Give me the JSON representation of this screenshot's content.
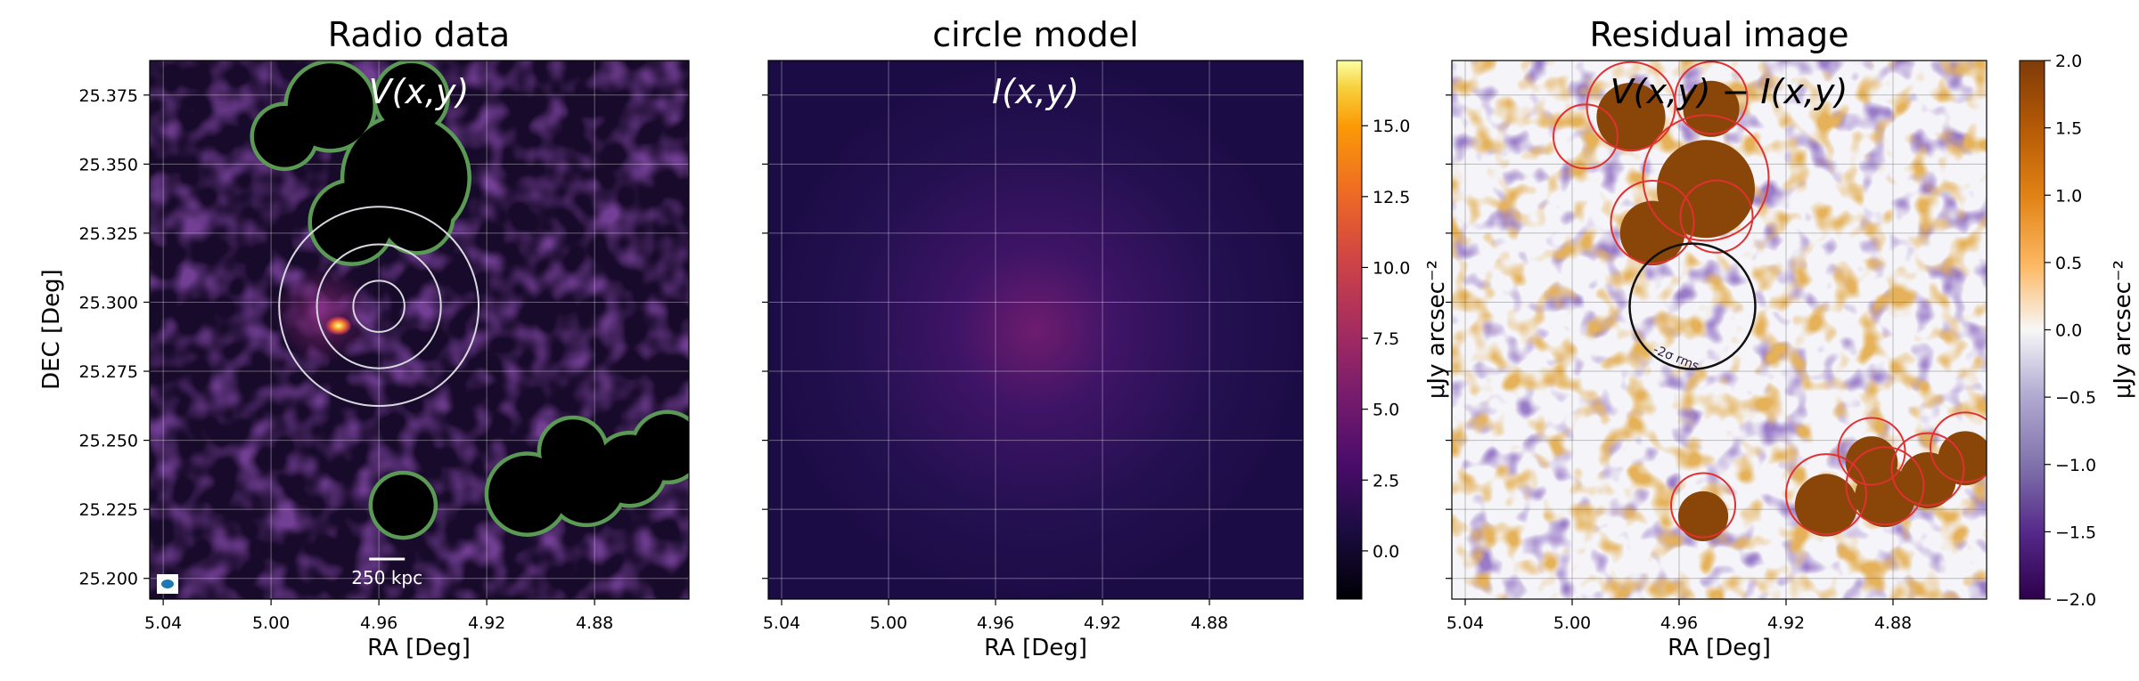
{
  "chart_data": [
    {
      "type": "heatmap",
      "title": "Radio data",
      "annotation": "V(x,y)",
      "xlabel": "RA [Deg]",
      "ylabel": "DEC [Deg]",
      "xlim": [
        5.045,
        4.845
      ],
      "ylim": [
        25.1925,
        25.3875
      ],
      "x_ticks": [
        5.04,
        5.0,
        4.96,
        4.92,
        4.88
      ],
      "x_tick_labels": [
        "5.04",
        "5.00",
        "4.96",
        "4.92",
        "4.88"
      ],
      "y_ticks": [
        25.2,
        25.225,
        25.25,
        25.275,
        25.3,
        25.325,
        25.35,
        25.375
      ],
      "y_tick_labels": [
        "25.200",
        "25.225",
        "25.250",
        "25.275",
        "25.300",
        "25.325",
        "25.350",
        "25.375"
      ],
      "colormap": "inferno",
      "grid": true,
      "bright_source": {
        "ra": 4.975,
        "dec": 25.2915,
        "peak": 16
      },
      "concentric_circles": {
        "center": [
          4.96,
          25.2985
        ],
        "radii_deg": [
          0.0095,
          0.023,
          0.037
        ],
        "color": "#d8d8e0"
      },
      "masked_regions": [
        {
          "ra": 4.978,
          "dec": 25.371,
          "r": 0.0165
        },
        {
          "ra": 4.948,
          "dec": 25.374,
          "r": 0.0135
        },
        {
          "ra": 4.995,
          "dec": 25.36,
          "r": 0.012
        },
        {
          "ra": 4.95,
          "dec": 25.345,
          "r": 0.0235
        },
        {
          "ra": 4.97,
          "dec": 25.329,
          "r": 0.0155
        },
        {
          "ra": 4.946,
          "dec": 25.331,
          "r": 0.0135
        },
        {
          "ra": 4.951,
          "dec": 25.2265,
          "r": 0.012
        },
        {
          "ra": 4.905,
          "dec": 25.2305,
          "r": 0.015
        },
        {
          "ra": 4.883,
          "dec": 25.2335,
          "r": 0.0145
        },
        {
          "ra": 4.888,
          "dec": 25.246,
          "r": 0.0125
        },
        {
          "ra": 4.867,
          "dec": 25.2395,
          "r": 0.0135
        },
        {
          "ra": 4.853,
          "dec": 25.2475,
          "r": 0.013
        }
      ],
      "mask_edge_color": "#5a9a55",
      "scalebar_label": "250 kpc"
    },
    {
      "type": "heatmap",
      "title": "circle model",
      "annotation": "I(x,y)",
      "xlabel": "RA [Deg]",
      "xlim": [
        5.045,
        4.845
      ],
      "ylim": [
        25.1925,
        25.3875
      ],
      "x_ticks": [
        5.04,
        5.0,
        4.96,
        4.92,
        4.88
      ],
      "x_tick_labels": [
        "5.04",
        "5.00",
        "4.96",
        "4.92",
        "4.88"
      ],
      "colormap": "inferno",
      "grid": true,
      "model_center": {
        "ra": 4.96,
        "dec": 25.2985
      },
      "colorbar": {
        "range": [
          -1.7,
          17.3
        ],
        "ticks": [
          0.0,
          2.5,
          5.0,
          7.5,
          10.0,
          12.5,
          15.0
        ],
        "tick_labels": [
          "0.0",
          "2.5",
          "5.0",
          "7.5",
          "10.0",
          "12.5",
          "15.0"
        ],
        "label": "μJy arcsec⁻²"
      }
    },
    {
      "type": "heatmap",
      "title": "Residual image",
      "annotation": "V(x,y) − I(x,y)",
      "xlabel": "RA [Deg]",
      "xlim": [
        5.045,
        4.845
      ],
      "ylim": [
        25.1925,
        25.3875
      ],
      "x_ticks": [
        5.04,
        5.0,
        4.96,
        4.92,
        4.88
      ],
      "x_tick_labels": [
        "5.04",
        "5.00",
        "4.96",
        "4.92",
        "4.88"
      ],
      "colormap": "PuOr_r",
      "grid": true,
      "residual_circle": {
        "center": [
          4.955,
          25.2985
        ],
        "radius_deg": 0.0235,
        "color": "#111111"
      },
      "contour_label": "-2σ rms",
      "masked_outlines_color": "#e03030",
      "colorbar": {
        "range": [
          -2.0,
          2.0
        ],
        "ticks": [
          -2.0,
          -1.5,
          -1.0,
          -0.5,
          0.0,
          0.5,
          1.0,
          1.5,
          2.0
        ],
        "tick_labels": [
          "−2.0",
          "−1.5",
          "−1.0",
          "−0.5",
          "0.0",
          "0.5",
          "1.0",
          "1.5",
          "2.0"
        ],
        "label": "μJy arcsec⁻²"
      }
    }
  ]
}
